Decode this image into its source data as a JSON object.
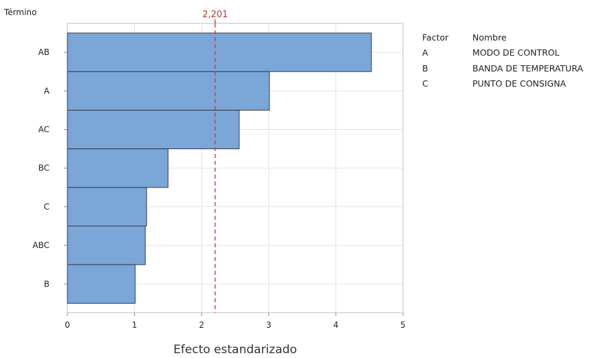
{
  "chart_data": {
    "type": "bar",
    "orientation": "horizontal",
    "ylabel": "Término",
    "xlabel": "Efecto estandarizado",
    "categories": [
      "AB",
      "A",
      "AC",
      "BC",
      "C",
      "ABC",
      "B"
    ],
    "values": [
      4.53,
      3.01,
      2.56,
      1.5,
      1.18,
      1.16,
      1.01
    ],
    "xlim": [
      0,
      5
    ],
    "xticks": [
      "0",
      "1",
      "2",
      "3",
      "4",
      "5"
    ],
    "reference_line": {
      "value": 2.201,
      "label": "2,201"
    },
    "grid": true,
    "legend_position": "right",
    "colors": {
      "bar": "#7aa6d8",
      "bar_edge": "#3a3a4a",
      "reference": "#d9363e",
      "grid": "#e2e2e2",
      "frame": "#bdbdbd"
    }
  },
  "factor_table": {
    "headers": {
      "factor": "Factor",
      "nombre": "Nombre"
    },
    "rows": [
      {
        "factor": "A",
        "nombre": "MODO DE CONTROL"
      },
      {
        "factor": "B",
        "nombre": "BANDA DE TEMPERATURA"
      },
      {
        "factor": "C",
        "nombre": "PUNTO DE CONSIGNA"
      }
    ]
  }
}
